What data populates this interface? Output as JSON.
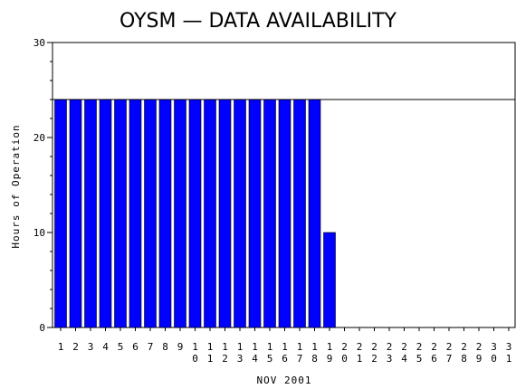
{
  "chart_data": {
    "type": "bar",
    "title": "OYSM — DATA AVAILABILITY",
    "xlabel": "NOV 2001",
    "ylabel": "Hours of Operation",
    "ylim": [
      0,
      30
    ],
    "yticks": [
      0,
      10,
      20,
      30
    ],
    "reference_line": 24,
    "bar_color": "#0000ff",
    "categories": [
      "1",
      "2",
      "3",
      "4",
      "5",
      "6",
      "7",
      "8",
      "9",
      "10",
      "11",
      "12",
      "13",
      "14",
      "15",
      "16",
      "17",
      "18",
      "19",
      "20",
      "21",
      "22",
      "23",
      "24",
      "25",
      "26",
      "27",
      "28",
      "29",
      "30",
      "31"
    ],
    "values": [
      24,
      24,
      24,
      24,
      24,
      24,
      24,
      24,
      24,
      24,
      24,
      24,
      24,
      24,
      24,
      24,
      24,
      24,
      10,
      0,
      0,
      0,
      0,
      0,
      0,
      0,
      0,
      0,
      0,
      0,
      0
    ]
  }
}
